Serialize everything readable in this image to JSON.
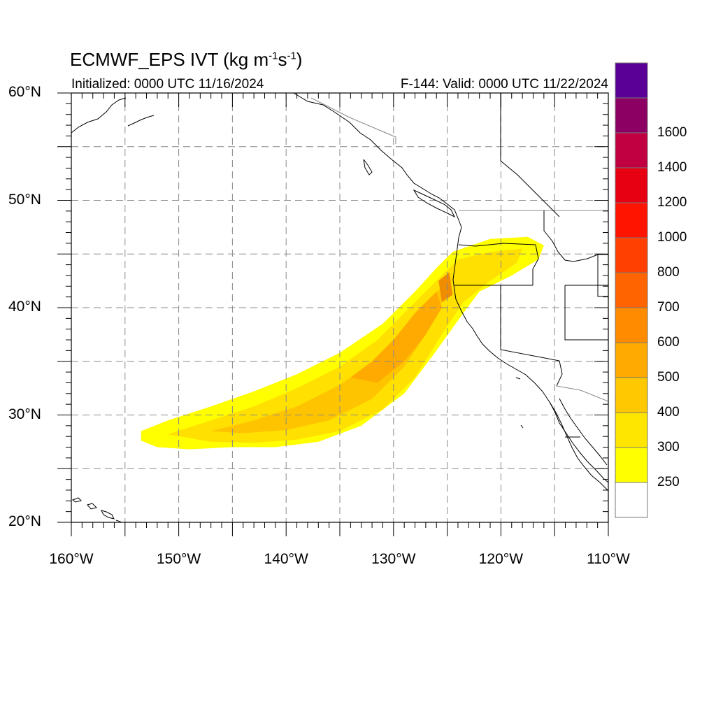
{
  "title": {
    "main": "ECMWF_EPS IVT (kg m",
    "exp1": "-1",
    "mid": "s",
    "exp2": "-1",
    "tail": ")"
  },
  "initialized": "Initialized: 0000 UTC 11/16/2024",
  "valid": "F-144: Valid: 0000 UTC 11/22/2024",
  "map": {
    "lat_range": [
      20,
      60
    ],
    "lon_range": [
      -160,
      -110
    ],
    "lat_labels": [
      {
        "value": 60,
        "text": "60°N"
      },
      {
        "value": 50,
        "text": "50°N"
      },
      {
        "value": 40,
        "text": "40°N"
      },
      {
        "value": 30,
        "text": "30°N"
      },
      {
        "value": 20,
        "text": "20°N"
      }
    ],
    "lon_labels": [
      {
        "value": -160,
        "text": "160°W"
      },
      {
        "value": -150,
        "text": "150°W"
      },
      {
        "value": -140,
        "text": "140°W"
      },
      {
        "value": -130,
        "text": "130°W"
      },
      {
        "value": -120,
        "text": "120°W"
      },
      {
        "value": -110,
        "text": "110°W"
      }
    ],
    "grid": "dashed, every 5 degrees"
  },
  "colorbar": {
    "levels": [
      {
        "label": "250",
        "color": "#ffff00"
      },
      {
        "label": "300",
        "color": "#ffe600"
      },
      {
        "label": "400",
        "color": "#ffc800"
      },
      {
        "label": "500",
        "color": "#ffaa00"
      },
      {
        "label": "600",
        "color": "#ff8c00"
      },
      {
        "label": "700",
        "color": "#ff6400"
      },
      {
        "label": "800",
        "color": "#ff4000"
      },
      {
        "label": "1000",
        "color": "#ff1400"
      },
      {
        "label": "1200",
        "color": "#e60012"
      },
      {
        "label": "1400",
        "color": "#c00040"
      },
      {
        "label": "1600",
        "color": "#8c0064"
      }
    ],
    "below_color": "#ffffff",
    "top_color": "#5a0096"
  },
  "ivt_plume": [
    {
      "level": "250",
      "color": "#ffff00",
      "path": [
        [
          -153.5,
          28.5
        ],
        [
          -151,
          29.5
        ],
        [
          -147,
          30.8
        ],
        [
          -143,
          32.2
        ],
        [
          -139,
          33.8
        ],
        [
          -135,
          35.8
        ],
        [
          -131,
          38.5
        ],
        [
          -128,
          41.5
        ],
        [
          -126,
          43.7
        ],
        [
          -124.5,
          45.2
        ],
        [
          -121,
          46.4
        ],
        [
          -117.5,
          46.6
        ],
        [
          -116,
          45.8
        ],
        [
          -116.5,
          44.5
        ],
        [
          -119,
          43
        ],
        [
          -122,
          41.5
        ],
        [
          -123.5,
          39.5
        ],
        [
          -126,
          36
        ],
        [
          -129,
          32
        ],
        [
          -133,
          29
        ],
        [
          -137,
          27.5
        ],
        [
          -141,
          27
        ],
        [
          -145,
          27
        ],
        [
          -149,
          26.8
        ],
        [
          -152,
          27
        ],
        [
          -153.5,
          27.6
        ]
      ]
    },
    {
      "level": "300",
      "color": "#ffe000",
      "path": [
        [
          -151,
          28.2
        ],
        [
          -147,
          29.5
        ],
        [
          -143,
          30.8
        ],
        [
          -139,
          32.5
        ],
        [
          -135,
          34.5
        ],
        [
          -131.5,
          37
        ],
        [
          -128.5,
          40
        ],
        [
          -126,
          42.5
        ],
        [
          -124,
          44.5
        ],
        [
          -121,
          45.2
        ],
        [
          -118,
          45.5
        ],
        [
          -118.5,
          44.2
        ],
        [
          -121,
          42.5
        ],
        [
          -123.5,
          40.5
        ],
        [
          -125.5,
          37.5
        ],
        [
          -128,
          33.5
        ],
        [
          -131,
          30.5
        ],
        [
          -135,
          28.5
        ],
        [
          -139,
          27.7
        ],
        [
          -143,
          27.4
        ],
        [
          -147,
          27.5
        ]
      ]
    },
    {
      "level": "400",
      "color": "#ffc400",
      "path": [
        [
          -147,
          28.5
        ],
        [
          -143,
          29.5
        ],
        [
          -139,
          30.8
        ],
        [
          -135,
          32.8
        ],
        [
          -131.5,
          35.3
        ],
        [
          -129,
          38
        ],
        [
          -126.5,
          41
        ],
        [
          -124.5,
          42.8
        ],
        [
          -125.5,
          40.5
        ],
        [
          -127,
          37.5
        ],
        [
          -129,
          34.5
        ],
        [
          -132,
          31.5
        ],
        [
          -136,
          29.5
        ],
        [
          -140,
          28.6
        ],
        [
          -144,
          28.3
        ]
      ]
    },
    {
      "level": "500",
      "color": "#ffaa00",
      "path": [
        [
          -134,
          33.5
        ],
        [
          -132,
          35
        ],
        [
          -130,
          37
        ],
        [
          -128,
          39.5
        ],
        [
          -126,
          41.5
        ],
        [
          -125.5,
          40
        ],
        [
          -127,
          37.5
        ],
        [
          -129,
          35
        ],
        [
          -131.5,
          33
        ]
      ]
    },
    {
      "level": "600",
      "color": "#f08c00",
      "path": [
        [
          -125.8,
          42.5
        ],
        [
          -124.8,
          43.3
        ],
        [
          -124.5,
          41.2
        ],
        [
          -125.5,
          40.5
        ]
      ]
    }
  ]
}
